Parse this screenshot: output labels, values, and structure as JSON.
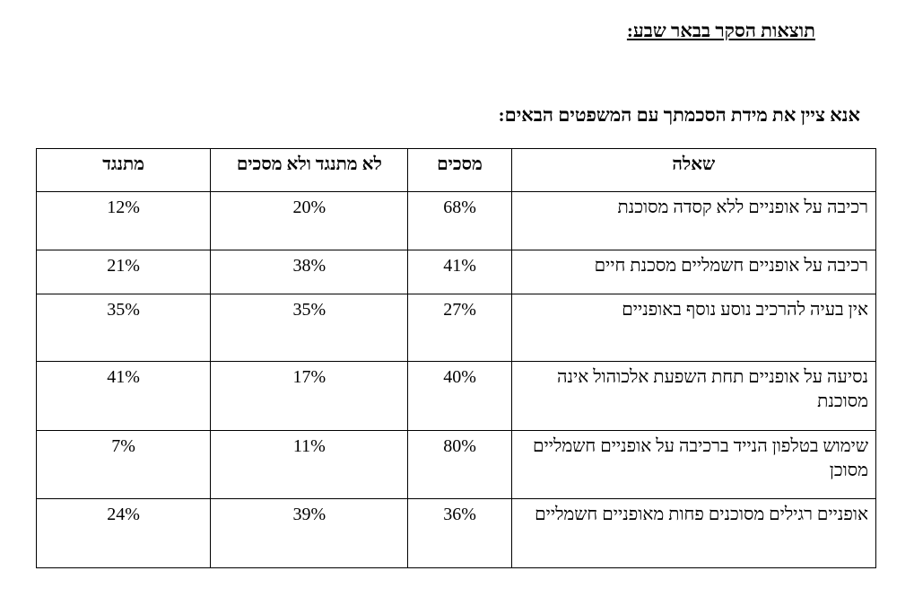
{
  "document": {
    "title": "תוצאות הסקר בבאר שבע:",
    "instruction": "אנא ציין את מידת הסכמתך עם המשפטים הבאים:"
  },
  "table": {
    "headers": {
      "question": "שאלה",
      "agree": "מסכים",
      "neutral": "לא מתנגד ולא מסכים",
      "disagree": "מתנגד"
    },
    "rows": [
      {
        "question": "רכיבה על אופניים ללא קסדה מסוכנת",
        "agree": "68%",
        "neutral": "20%",
        "disagree": "12%"
      },
      {
        "question": "רכיבה על אופניים חשמליים מסכנת חיים",
        "agree": "41%",
        "neutral": "38%",
        "disagree": "21%"
      },
      {
        "question": "אין בעיה להרכיב נוסע נוסף באופניים",
        "agree": "27%",
        "neutral": "35%",
        "disagree": "35%"
      },
      {
        "question": "נסיעה על אופניים תחת השפעת אלכוהול אינה מסוכנת",
        "agree": "40%",
        "neutral": "17%",
        "disagree": "41%"
      },
      {
        "question": "שימוש בטלפון הנייד ברכיבה על אופניים חשמליים מסוכן",
        "agree": "80%",
        "neutral": "11%",
        "disagree": "7%"
      },
      {
        "question": "אופניים רגילים מסוכנים פחות מאופניים חשמליים",
        "agree": "36%",
        "neutral": "39%",
        "disagree": "24%"
      }
    ]
  }
}
